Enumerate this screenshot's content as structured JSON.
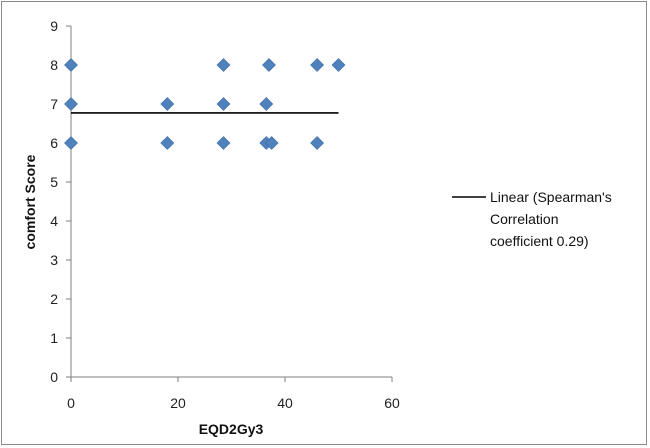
{
  "chart_data": {
    "type": "scatter",
    "xlabel": "EQD2Gy3",
    "ylabel": "comfort Score",
    "xlim": [
      0,
      60
    ],
    "ylim": [
      0,
      9
    ],
    "x_ticks": [
      0,
      20,
      40,
      60
    ],
    "y_ticks": [
      0,
      1,
      2,
      3,
      4,
      5,
      6,
      7,
      8,
      9
    ],
    "grid": false,
    "legend_position": "right",
    "marker_color": "#4f81bd",
    "line_color": "#000000",
    "series": [
      {
        "type": "scatter",
        "points": [
          {
            "x": 0,
            "y": 8
          },
          {
            "x": 0,
            "y": 7
          },
          {
            "x": 0,
            "y": 6
          },
          {
            "x": 18,
            "y": 7
          },
          {
            "x": 18,
            "y": 6
          },
          {
            "x": 28.5,
            "y": 8
          },
          {
            "x": 28.5,
            "y": 7
          },
          {
            "x": 28.5,
            "y": 6
          },
          {
            "x": 36.5,
            "y": 7
          },
          {
            "x": 36.5,
            "y": 6
          },
          {
            "x": 37.5,
            "y": 6
          },
          {
            "x": 37,
            "y": 8
          },
          {
            "x": 46,
            "y": 8
          },
          {
            "x": 46,
            "y": 6
          },
          {
            "x": 50,
            "y": 8
          }
        ]
      },
      {
        "type": "line",
        "points": [
          {
            "x": 0,
            "y": 6.77
          },
          {
            "x": 50,
            "y": 6.77
          }
        ]
      }
    ],
    "legend": {
      "lines": [
        "Linear (Spearman's",
        "Correlation",
        "coefficient 0.29)"
      ]
    }
  }
}
